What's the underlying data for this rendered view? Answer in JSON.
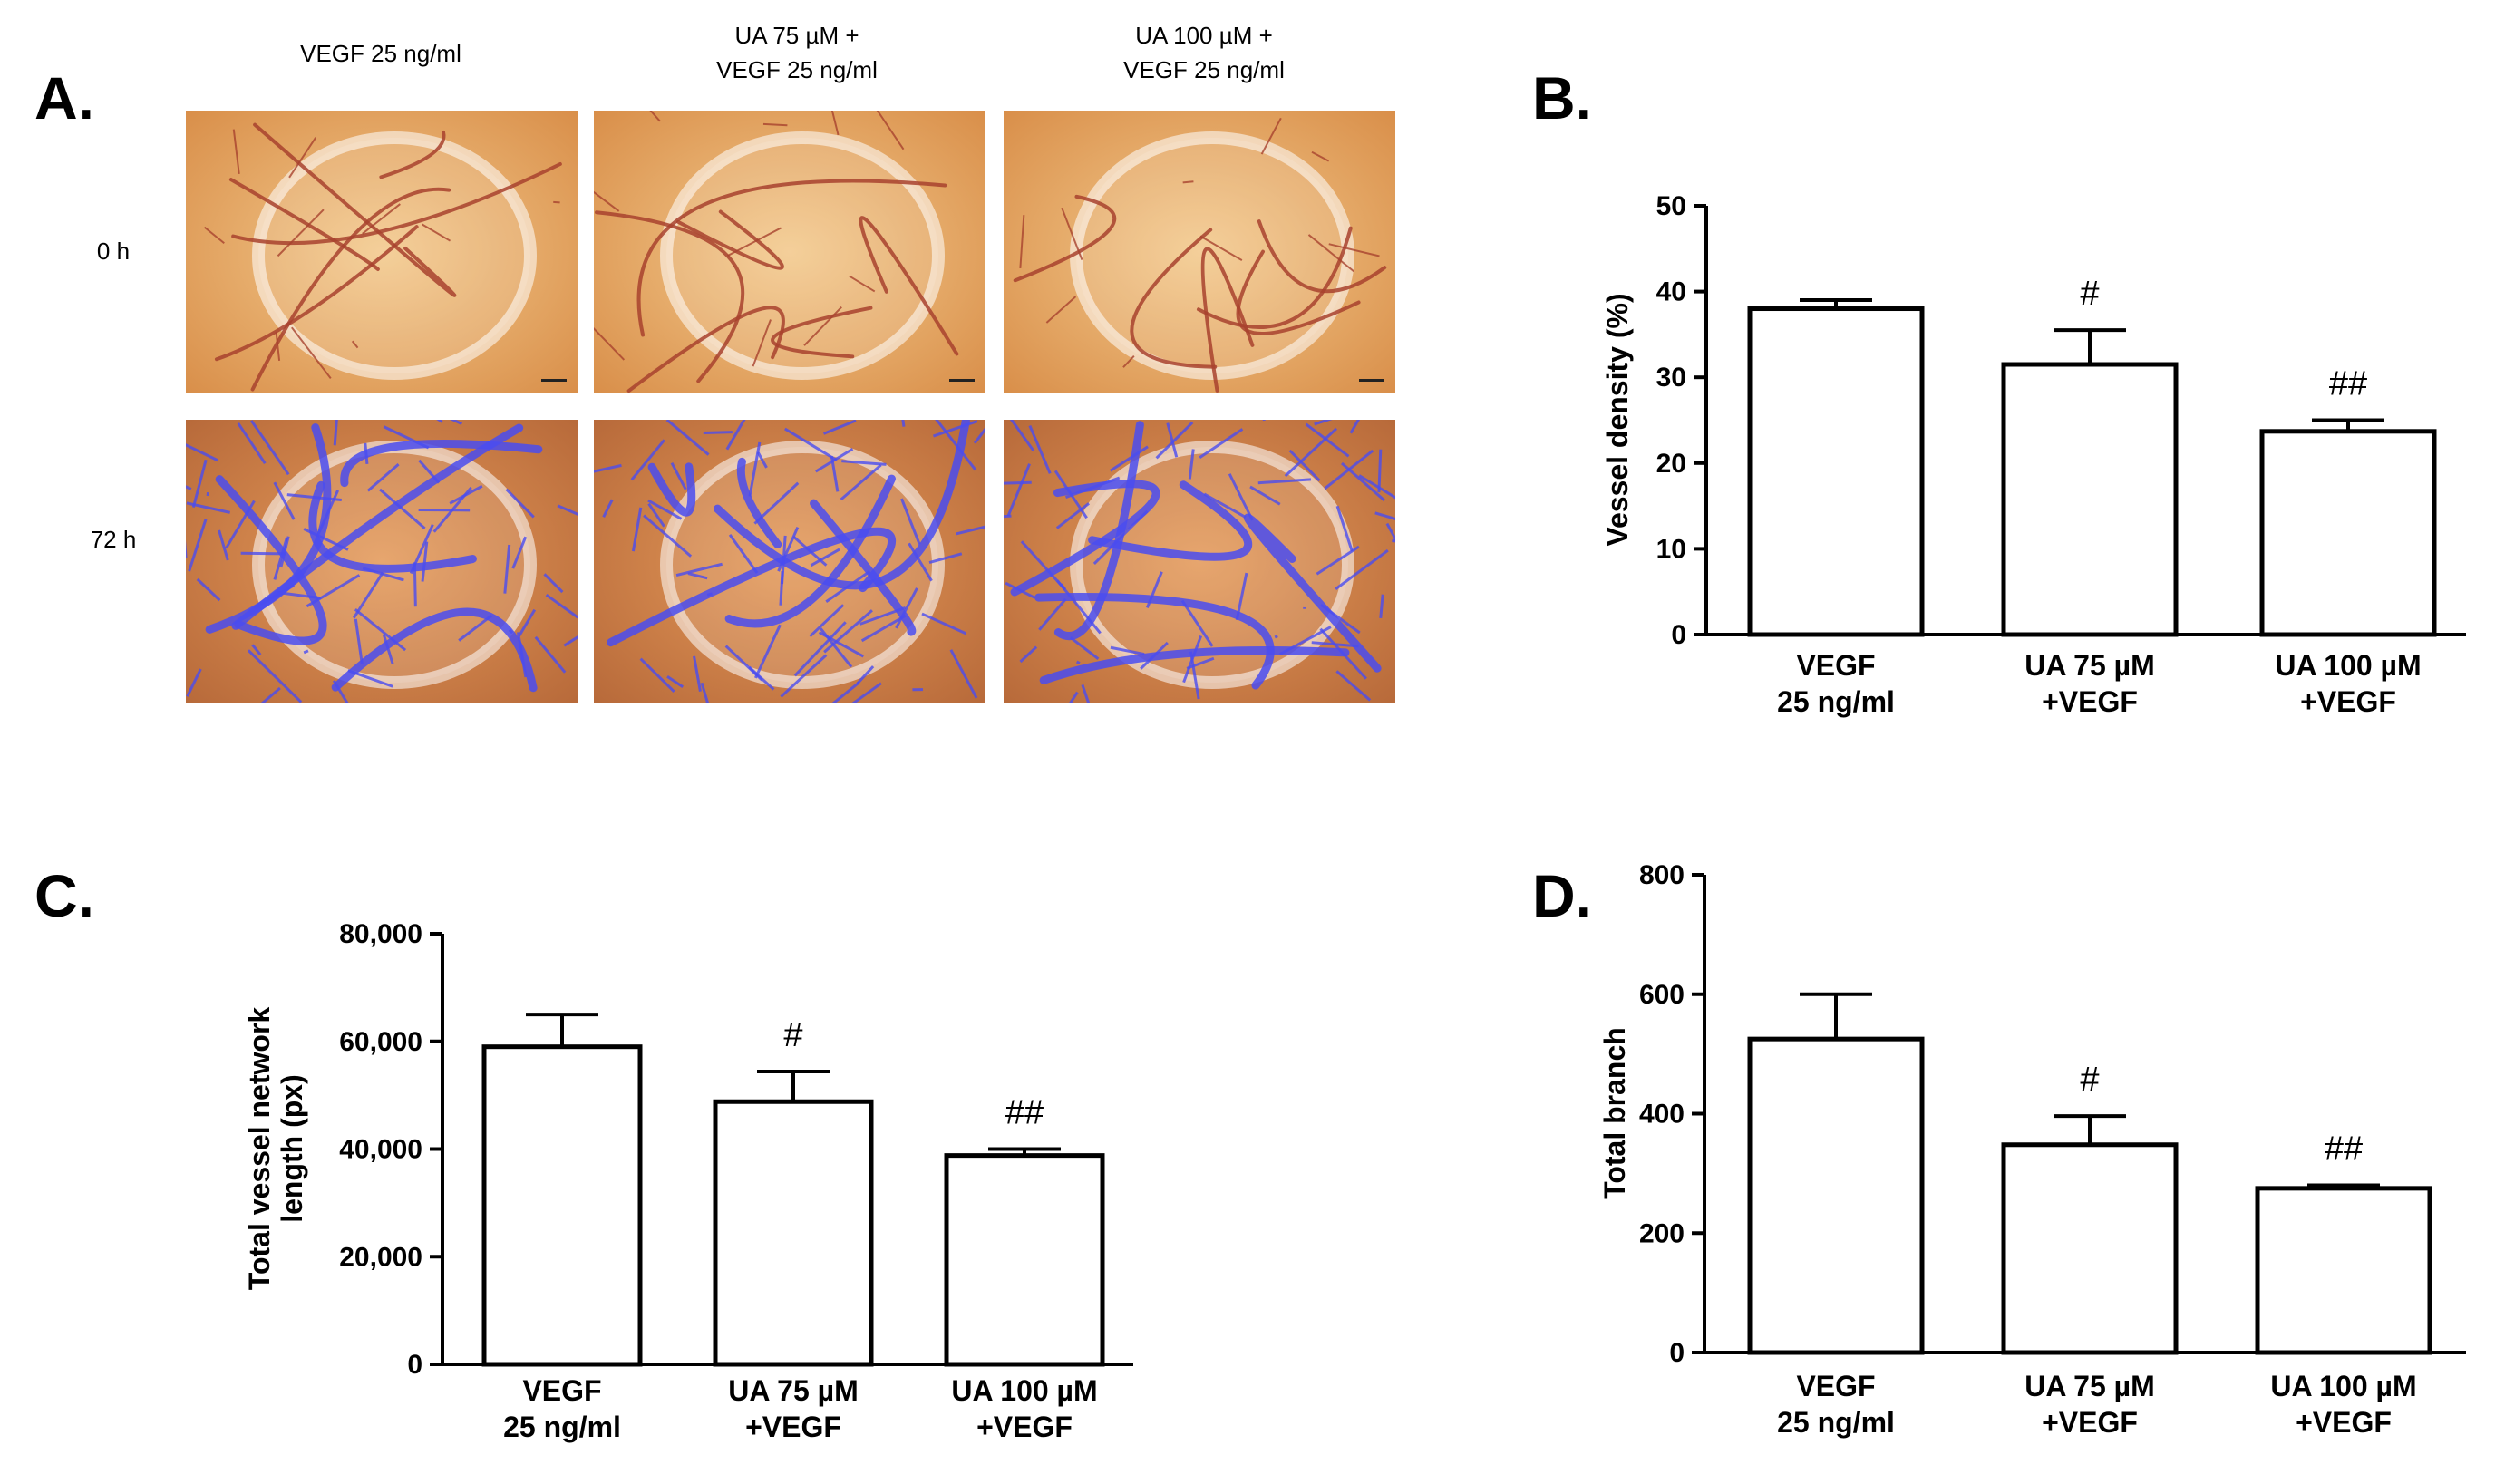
{
  "panel_a": {
    "letter": "A.",
    "columns": [
      "VEGF 25 ng/ml",
      "UA 75 µM +\nVEGF 25 ng/ml",
      "UA 100 µM +\nVEGF 25 ng/ml"
    ],
    "rows": [
      "0 h",
      "72 h"
    ]
  },
  "chart_data": [
    {
      "panel": "B.",
      "type": "bar",
      "categories": [
        [
          "VEGF",
          "25 ng/ml"
        ],
        [
          "UA 75 µM",
          "+VEGF"
        ],
        [
          "UA 100 µM",
          "+VEGF"
        ]
      ],
      "values": [
        38,
        31.5,
        23.7
      ],
      "errors": [
        1,
        4,
        1.3
      ],
      "annotations": [
        "",
        "#",
        "##"
      ],
      "ylabel": "Vessel density (%)",
      "ylim": [
        0,
        50
      ],
      "yticks": [
        0,
        10,
        20,
        30,
        40,
        50
      ],
      "ytick_labels": [
        "0",
        "10",
        "20",
        "30",
        "40",
        "50"
      ]
    },
    {
      "panel": "C.",
      "type": "bar",
      "categories": [
        [
          "VEGF",
          "25 ng/ml"
        ],
        [
          "UA 75 µM",
          "+VEGF"
        ],
        [
          "UA 100 µM",
          "+VEGF"
        ]
      ],
      "values": [
        59000,
        48800,
        38800
      ],
      "errors": [
        6000,
        5600,
        1200
      ],
      "annotations": [
        "",
        "#",
        "##"
      ],
      "ylabel": [
        "Total vessel network",
        "length (px)"
      ],
      "ylim": [
        0,
        80000
      ],
      "yticks": [
        0,
        20000,
        40000,
        60000,
        80000
      ],
      "ytick_labels": [
        "0",
        "20,000",
        "40,000",
        "60,000",
        "80,000"
      ]
    },
    {
      "panel": "D.",
      "type": "bar",
      "categories": [
        [
          "VEGF",
          "25 ng/ml"
        ],
        [
          "UA 75 µM",
          "+VEGF"
        ],
        [
          "UA 100 µM",
          "+VEGF"
        ]
      ],
      "values": [
        525,
        348,
        275
      ],
      "errors": [
        75,
        48,
        5
      ],
      "annotations": [
        "",
        "#",
        "##"
      ],
      "ylabel": "Total branch",
      "ylim": [
        0,
        800
      ],
      "yticks": [
        0,
        200,
        400,
        600,
        800
      ],
      "ytick_labels": [
        "0",
        "200",
        "400",
        "600",
        "800"
      ]
    }
  ],
  "colors": {
    "bar_fill": "#ffffff",
    "bar_stroke": "#000000",
    "photo_base": "#e8a45c",
    "photo_vessel": "#a8422e",
    "overlay_vessel": "#4a4cf0"
  }
}
